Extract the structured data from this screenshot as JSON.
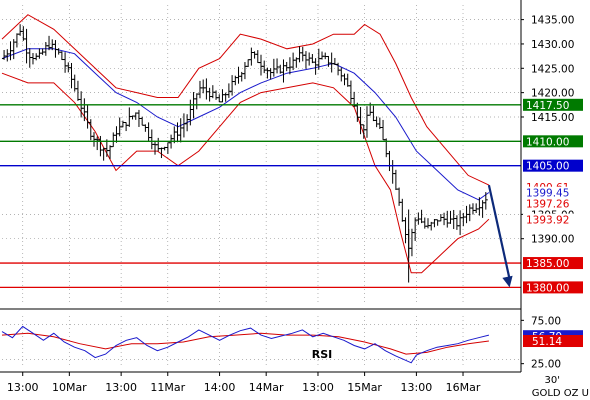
{
  "chart_data": {
    "type": "candlestick",
    "instrument_label": "GOLD OZ U",
    "timeframe_label": "30'",
    "colors": {
      "candles": "#000000",
      "bollinger": "#d40000",
      "moving_average": "#1a1acc",
      "rsi": "#1a1acc",
      "rsi_signal": "#d40000",
      "support": "#e00000",
      "resistance_green": "#007a00",
      "pivot_blue": "#0000cc",
      "arrow": "#0d2a7a"
    },
    "price_axis": {
      "range": [
        1377,
        1438
      ],
      "ticks": [
        1390,
        1395,
        1415,
        1420,
        1425,
        1430,
        1435
      ],
      "tick_labels": [
        "1390.00",
        "1395.00",
        "1415.00",
        "1420.00",
        "1425.00",
        "1430.00",
        "1435.00"
      ]
    },
    "level_lines": [
      {
        "value": 1417.5,
        "label": "1417.50",
        "color": "#007a00"
      },
      {
        "value": 1410.0,
        "label": "1410.00",
        "color": "#007a00"
      },
      {
        "value": 1405.0,
        "label": "1405.00",
        "color": "#0000cc"
      },
      {
        "value": 1385.0,
        "label": "1385.00",
        "color": "#e00000"
      },
      {
        "value": 1380.0,
        "label": "1380.00",
        "color": "#e00000"
      }
    ],
    "value_tags": [
      {
        "value": 1400.61,
        "label": "1400.61",
        "color": "#e00000"
      },
      {
        "value": 1399.45,
        "label": "1399.45",
        "color": "#1a1acc"
      },
      {
        "value": 1397.26,
        "label": "1397.26",
        "color": "#e00000"
      },
      {
        "value": 1393.92,
        "label": "1393.92",
        "color": "#e00000"
      }
    ],
    "close_path": [
      [
        0,
        1427
      ],
      [
        1.5,
        1429
      ],
      [
        3.5,
        1433
      ],
      [
        5,
        1428
      ],
      [
        7,
        1427
      ],
      [
        9,
        1430
      ],
      [
        11,
        1428
      ],
      [
        13,
        1424
      ],
      [
        15,
        1418
      ],
      [
        17,
        1412
      ],
      [
        19,
        1409
      ],
      [
        20.5,
        1408
      ],
      [
        22,
        1412
      ],
      [
        24,
        1414
      ],
      [
        26,
        1416
      ],
      [
        28,
        1412
      ],
      [
        30,
        1408
      ],
      [
        32,
        1410
      ],
      [
        34,
        1412
      ],
      [
        36,
        1415
      ],
      [
        38,
        1421
      ],
      [
        40,
        1420
      ],
      [
        42,
        1418
      ],
      [
        44,
        1421
      ],
      [
        46,
        1424
      ],
      [
        48,
        1428
      ],
      [
        50,
        1426
      ],
      [
        52,
        1424
      ],
      [
        54,
        1425
      ],
      [
        56,
        1426
      ],
      [
        58,
        1428
      ],
      [
        60,
        1426
      ],
      [
        62,
        1427
      ],
      [
        64,
        1426
      ],
      [
        66,
        1423
      ],
      [
        68,
        1418
      ],
      [
        69.5,
        1412
      ],
      [
        71,
        1416
      ],
      [
        73,
        1412
      ],
      [
        75,
        1405
      ],
      [
        76.5,
        1399
      ],
      [
        77.5,
        1393
      ],
      [
        78.5,
        1388
      ],
      [
        80,
        1395
      ],
      [
        82,
        1392
      ],
      [
        84,
        1394
      ],
      [
        86,
        1394
      ],
      [
        88,
        1393
      ],
      [
        90,
        1396
      ],
      [
        92,
        1397
      ],
      [
        94,
        1399
      ]
    ],
    "bollinger_upper": [
      [
        0,
        1431
      ],
      [
        5,
        1436
      ],
      [
        10,
        1433
      ],
      [
        14,
        1429
      ],
      [
        18,
        1425
      ],
      [
        22,
        1421
      ],
      [
        26,
        1420
      ],
      [
        30,
        1419
      ],
      [
        34,
        1419
      ],
      [
        38,
        1425
      ],
      [
        42,
        1427
      ],
      [
        46,
        1432
      ],
      [
        50,
        1431
      ],
      [
        55,
        1429
      ],
      [
        60,
        1430
      ],
      [
        64,
        1432
      ],
      [
        68,
        1432
      ],
      [
        70,
        1434
      ],
      [
        73,
        1432
      ],
      [
        76,
        1426
      ],
      [
        79,
        1419
      ],
      [
        82,
        1413
      ],
      [
        86,
        1408
      ],
      [
        90,
        1403
      ],
      [
        94,
        1401
      ]
    ],
    "bollinger_lower": [
      [
        0,
        1424
      ],
      [
        5,
        1422
      ],
      [
        10,
        1422
      ],
      [
        14,
        1418
      ],
      [
        18,
        1412
      ],
      [
        22,
        1404
      ],
      [
        26,
        1408
      ],
      [
        30,
        1408
      ],
      [
        34,
        1405
      ],
      [
        38,
        1408
      ],
      [
        42,
        1413
      ],
      [
        46,
        1418
      ],
      [
        50,
        1420
      ],
      [
        55,
        1421
      ],
      [
        60,
        1422
      ],
      [
        64,
        1421
      ],
      [
        68,
        1417
      ],
      [
        72,
        1405
      ],
      [
        75,
        1400
      ],
      [
        77,
        1391
      ],
      [
        79,
        1383
      ],
      [
        81,
        1383
      ],
      [
        84,
        1386
      ],
      [
        88,
        1390
      ],
      [
        92,
        1392
      ],
      [
        94,
        1394
      ]
    ],
    "moving_average": [
      [
        0,
        1427
      ],
      [
        5,
        1429
      ],
      [
        10,
        1429
      ],
      [
        14,
        1428
      ],
      [
        18,
        1424
      ],
      [
        22,
        1420
      ],
      [
        26,
        1418
      ],
      [
        30,
        1415
      ],
      [
        34,
        1413
      ],
      [
        38,
        1415
      ],
      [
        42,
        1417
      ],
      [
        46,
        1420
      ],
      [
        50,
        1422
      ],
      [
        55,
        1424
      ],
      [
        60,
        1425
      ],
      [
        64,
        1426
      ],
      [
        68,
        1424
      ],
      [
        72,
        1420
      ],
      [
        76,
        1415
      ],
      [
        80,
        1408
      ],
      [
        84,
        1404
      ],
      [
        88,
        1400
      ],
      [
        92,
        1398
      ],
      [
        94,
        1399.5
      ]
    ],
    "arrow": {
      "from": [
        94,
        1401
      ],
      "to": [
        98,
        1380
      ]
    },
    "rsi_panel": {
      "label": "RSI",
      "range": [
        20,
        80
      ],
      "ticks": [
        25,
        75
      ],
      "tick_labels": [
        "25.00",
        "75.00"
      ],
      "guide_lines": [
        30,
        70
      ],
      "current_tags": [
        {
          "value": 56.7,
          "label": "56.70",
          "color": "#1a1acc"
        },
        {
          "value": 51.14,
          "label": "51.14",
          "color": "#e00000"
        }
      ],
      "rsi_path": [
        [
          0,
          62
        ],
        [
          2,
          55
        ],
        [
          4,
          68
        ],
        [
          6,
          60
        ],
        [
          8,
          52
        ],
        [
          10,
          60
        ],
        [
          12,
          50
        ],
        [
          14,
          44
        ],
        [
          16,
          40
        ],
        [
          18,
          32
        ],
        [
          20,
          36
        ],
        [
          22,
          46
        ],
        [
          24,
          52
        ],
        [
          26,
          55
        ],
        [
          28,
          46
        ],
        [
          30,
          40
        ],
        [
          32,
          44
        ],
        [
          34,
          50
        ],
        [
          36,
          56
        ],
        [
          38,
          64
        ],
        [
          40,
          58
        ],
        [
          42,
          52
        ],
        [
          44,
          58
        ],
        [
          46,
          63
        ],
        [
          48,
          66
        ],
        [
          50,
          58
        ],
        [
          52,
          54
        ],
        [
          54,
          57
        ],
        [
          56,
          60
        ],
        [
          58,
          64
        ],
        [
          60,
          56
        ],
        [
          62,
          60
        ],
        [
          64,
          56
        ],
        [
          66,
          52
        ],
        [
          68,
          46
        ],
        [
          70,
          42
        ],
        [
          72,
          48
        ],
        [
          74,
          40
        ],
        [
          76,
          34
        ],
        [
          77.5,
          30
        ],
        [
          79,
          26
        ],
        [
          80,
          35
        ],
        [
          82,
          40
        ],
        [
          84,
          44
        ],
        [
          86,
          46
        ],
        [
          88,
          48
        ],
        [
          90,
          52
        ],
        [
          92,
          55
        ],
        [
          94,
          58
        ]
      ],
      "signal_path": [
        [
          0,
          58
        ],
        [
          5,
          60
        ],
        [
          10,
          56
        ],
        [
          15,
          48
        ],
        [
          20,
          42
        ],
        [
          25,
          48
        ],
        [
          30,
          48
        ],
        [
          35,
          50
        ],
        [
          40,
          56
        ],
        [
          45,
          58
        ],
        [
          50,
          60
        ],
        [
          55,
          58
        ],
        [
          60,
          58
        ],
        [
          65,
          56
        ],
        [
          70,
          50
        ],
        [
          75,
          42
        ],
        [
          78,
          36
        ],
        [
          82,
          38
        ],
        [
          86,
          44
        ],
        [
          90,
          48
        ],
        [
          94,
          51.14
        ]
      ]
    },
    "time_axis": {
      "range": [
        0,
        100
      ],
      "ticks": [
        {
          "at": 4,
          "label": "13:00"
        },
        {
          "at": 13,
          "label": "10Mar"
        },
        {
          "at": 23,
          "label": "13:00"
        },
        {
          "at": 32,
          "label": "11Mar"
        },
        {
          "at": 42,
          "label": "14:00"
        },
        {
          "at": 51,
          "label": "14Mar"
        },
        {
          "at": 61,
          "label": "13:00"
        },
        {
          "at": 70,
          "label": "15Mar"
        },
        {
          "at": 80,
          "label": "13:00"
        },
        {
          "at": 89,
          "label": "16Mar"
        }
      ]
    }
  }
}
